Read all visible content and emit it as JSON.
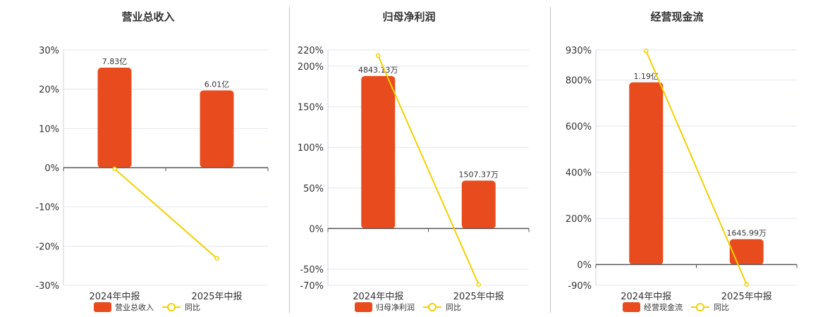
{
  "colors": {
    "bar": "#e84c1e",
    "line": "#f5d000",
    "grid": "#e3e6ee",
    "axis": "#555555"
  },
  "chart_data": [
    {
      "type": "bar",
      "title": "营业总收入",
      "categories": [
        "2024年中报",
        "2025年中报"
      ],
      "bar_labels": [
        "7.83亿",
        "6.01亿"
      ],
      "bar_values": [
        25.5,
        19.7
      ],
      "line_values": [
        -0.3,
        -23.1
      ],
      "yticks": [
        30,
        20,
        10,
        0,
        -10,
        -20,
        -30
      ],
      "ytick_labels": [
        "30%",
        "20%",
        "10%",
        "0%",
        "-10%",
        "-20%",
        "-30%"
      ],
      "ylim": [
        -30,
        30
      ],
      "legend": [
        "营业总收入",
        "同比"
      ]
    },
    {
      "type": "bar",
      "title": "归母净利润",
      "categories": [
        "2024年中报",
        "2025年中报"
      ],
      "bar_labels": [
        "4843.13万",
        "1507.37万"
      ],
      "bar_values": [
        188,
        59
      ],
      "line_values": [
        213,
        -69
      ],
      "yticks": [
        220,
        200,
        150,
        100,
        50,
        0,
        -50,
        -70
      ],
      "ytick_labels": [
        "220%",
        "200%",
        "150%",
        "100%",
        "50%",
        "0%",
        "-50%",
        "-70%"
      ],
      "ylim": [
        -70,
        220
      ],
      "legend": [
        "归母净利润",
        "同比"
      ]
    },
    {
      "type": "bar",
      "title": "经营现金流",
      "categories": [
        "2024年中报",
        "2025年中报"
      ],
      "bar_labels": [
        "1.19亿",
        "1645.99万"
      ],
      "bar_values": [
        790,
        110
      ],
      "line_values": [
        926,
        -86
      ],
      "yticks": [
        930,
        800,
        600,
        400,
        200,
        0,
        -90
      ],
      "ytick_labels": [
        "930%",
        "800%",
        "600%",
        "400%",
        "200%",
        "0%",
        "-90%"
      ],
      "ylim": [
        -90,
        930
      ],
      "legend": [
        "经营现金流",
        "同比"
      ]
    }
  ]
}
